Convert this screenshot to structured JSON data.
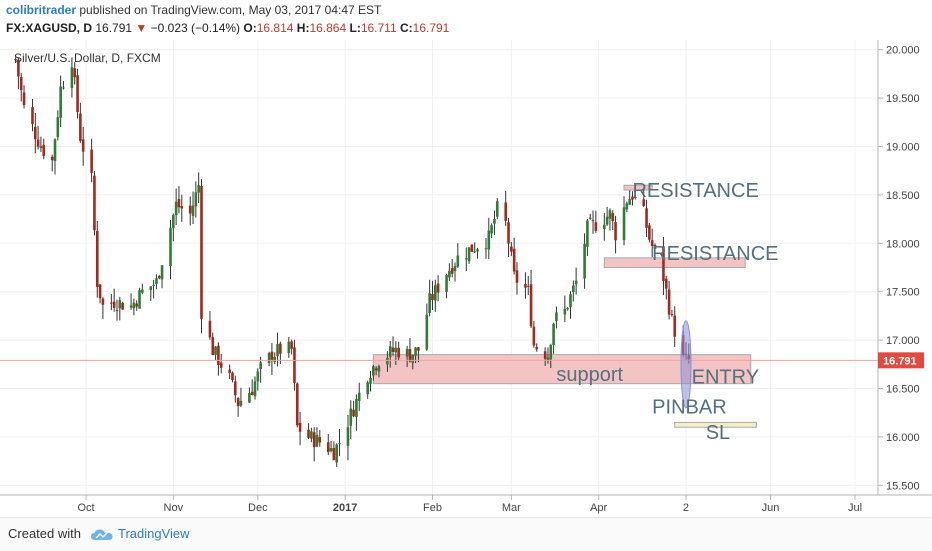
{
  "header": {
    "author": "colibritrader",
    "published_text": "published on TradingView.com, May 03, 2017 04:47 EST",
    "symbol": "FX:XAGUSD, D",
    "last": "16.791",
    "change_arrow": "▼",
    "change": "−0.023 (−0.14%)",
    "open_label": "O:",
    "open": "16.814",
    "high_label": "H:",
    "high": "16.864",
    "low_label": "L:",
    "low": "16.711",
    "close_label": "C:",
    "close": "16.791"
  },
  "footer": {
    "created_with": "Created with",
    "brand": "TradingView"
  },
  "colors": {
    "up": "#2e7d32",
    "down": "#a5281b",
    "zone_fill": "#f3c4c4",
    "zone_stroke": "#a9a9a9",
    "sl_fill": "#f3efc6",
    "annotation_text": "#55707e",
    "price_badge": "#e04a3f",
    "pinbar": "#8a8fd8"
  },
  "chart_data": {
    "type": "candlestick",
    "title": "Silver/U.S. Dollar, D, FXCM",
    "ylim": [
      15.4,
      20.1
    ],
    "y_ticks": [
      "20.000",
      "19.500",
      "19.000",
      "18.500",
      "18.000",
      "17.500",
      "17.000",
      "16.500",
      "16.000",
      "15.500"
    ],
    "x_ticks": [
      "Oct",
      "Nov",
      "Dec",
      "2017",
      "Feb",
      "Mar",
      "Apr",
      "2",
      "Jun",
      "Jul"
    ],
    "x_tick_dates": [
      "2016-10-01",
      "2016-11-01",
      "2016-12-01",
      "2017-01-01",
      "2017-02-01",
      "2017-03-01",
      "2017-04-01",
      "2017-05-02",
      "2017-06-01",
      "2017-07-01"
    ],
    "last_price": "16.791",
    "grid": true,
    "anchors": [
      {
        "date": "2016-09-06",
        "close": 19.9
      },
      {
        "date": "2016-09-09",
        "close": 19.4
      },
      {
        "date": "2016-09-15",
        "close": 19.0
      },
      {
        "date": "2016-09-19",
        "close": 18.85
      },
      {
        "date": "2016-09-22",
        "close": 19.6
      },
      {
        "date": "2016-09-26",
        "close": 19.9
      },
      {
        "date": "2016-09-29",
        "close": 19.1
      },
      {
        "date": "2016-10-03",
        "close": 18.65
      },
      {
        "date": "2016-10-05",
        "close": 17.6
      },
      {
        "date": "2016-10-07",
        "close": 17.35
      },
      {
        "date": "2016-10-11",
        "close": 17.4
      },
      {
        "date": "2016-10-17",
        "close": 17.35
      },
      {
        "date": "2016-10-21",
        "close": 17.5
      },
      {
        "date": "2016-10-26",
        "close": 17.6
      },
      {
        "date": "2016-11-02",
        "close": 18.4
      },
      {
        "date": "2016-11-07",
        "close": 18.3
      },
      {
        "date": "2016-11-10",
        "close": 18.6
      },
      {
        "date": "2016-11-11",
        "close": 17.3
      },
      {
        "date": "2016-11-15",
        "close": 16.9
      },
      {
        "date": "2016-11-21",
        "close": 16.6
      },
      {
        "date": "2016-11-24",
        "close": 16.35
      },
      {
        "date": "2016-11-29",
        "close": 16.5
      },
      {
        "date": "2016-12-02",
        "close": 16.7
      },
      {
        "date": "2016-12-06",
        "close": 16.85
      },
      {
        "date": "2016-12-09",
        "close": 16.9
      },
      {
        "date": "2016-12-13",
        "close": 16.9
      },
      {
        "date": "2016-12-15",
        "close": 16.1
      },
      {
        "date": "2016-12-19",
        "close": 16.0
      },
      {
        "date": "2016-12-23",
        "close": 15.95
      },
      {
        "date": "2016-12-28",
        "close": 15.85
      },
      {
        "date": "2016-12-30",
        "close": 15.95
      },
      {
        "date": "2017-01-04",
        "close": 16.3
      },
      {
        "date": "2017-01-09",
        "close": 16.65
      },
      {
        "date": "2017-01-13",
        "close": 16.8
      },
      {
        "date": "2017-01-19",
        "close": 16.9
      },
      {
        "date": "2017-01-24",
        "close": 16.85
      },
      {
        "date": "2017-01-27",
        "close": 16.9
      },
      {
        "date": "2017-01-31",
        "close": 17.4
      },
      {
        "date": "2017-02-06",
        "close": 17.7
      },
      {
        "date": "2017-02-10",
        "close": 17.85
      },
      {
        "date": "2017-02-15",
        "close": 17.95
      },
      {
        "date": "2017-02-21",
        "close": 18.05
      },
      {
        "date": "2017-02-24",
        "close": 18.35
      },
      {
        "date": "2017-02-27",
        "close": 18.2
      },
      {
        "date": "2017-03-02",
        "close": 17.65
      },
      {
        "date": "2017-03-07",
        "close": 17.5
      },
      {
        "date": "2017-03-09",
        "close": 16.95
      },
      {
        "date": "2017-03-14",
        "close": 16.85
      },
      {
        "date": "2017-03-16",
        "close": 17.2
      },
      {
        "date": "2017-03-20",
        "close": 17.3
      },
      {
        "date": "2017-03-24",
        "close": 17.6
      },
      {
        "date": "2017-03-28",
        "close": 18.15
      },
      {
        "date": "2017-03-31",
        "close": 18.2
      },
      {
        "date": "2017-04-05",
        "close": 18.3
      },
      {
        "date": "2017-04-07",
        "close": 18.1
      },
      {
        "date": "2017-04-11",
        "close": 18.45
      },
      {
        "date": "2017-04-13",
        "close": 18.5
      },
      {
        "date": "2017-04-17",
        "close": 18.3
      },
      {
        "date": "2017-04-19",
        "close": 18.05
      },
      {
        "date": "2017-04-24",
        "close": 17.65
      },
      {
        "date": "2017-04-27",
        "close": 17.2
      },
      {
        "date": "2017-05-01",
        "close": 16.8
      },
      {
        "date": "2017-05-03",
        "close": 16.79
      }
    ],
    "zones": [
      {
        "name": "support",
        "from": "2017-01-11",
        "to": "2017-05-25",
        "y0": 16.55,
        "y1": 16.85
      },
      {
        "name": "resistance-upper",
        "from": "2017-04-10",
        "to": "2017-04-20",
        "y0": 18.55,
        "y1": 18.6
      },
      {
        "name": "resistance-lower",
        "from": "2017-04-03",
        "to": "2017-05-23",
        "y0": 17.75,
        "y1": 17.85
      },
      {
        "name": "stop-loss",
        "from": "2017-04-28",
        "to": "2017-05-27",
        "y0": 16.1,
        "y1": 16.15
      }
    ],
    "pinbar": {
      "date": "2017-05-02",
      "high": 17.2,
      "low": 16.3
    },
    "annotations": [
      {
        "text": "RESISTANCE",
        "date": "2017-04-13",
        "value": 18.48
      },
      {
        "text": "RESISTANCE",
        "date": "2017-04-20",
        "value": 17.83
      },
      {
        "text": "support",
        "date": "2017-03-17",
        "value": 16.58
      },
      {
        "text": "ENTRY",
        "date": "2017-05-04",
        "value": 16.55
      },
      {
        "text": "PINBAR",
        "date": "2017-04-20",
        "value": 16.24
      },
      {
        "text": "SL",
        "date": "2017-05-09",
        "value": 15.98
      }
    ]
  }
}
